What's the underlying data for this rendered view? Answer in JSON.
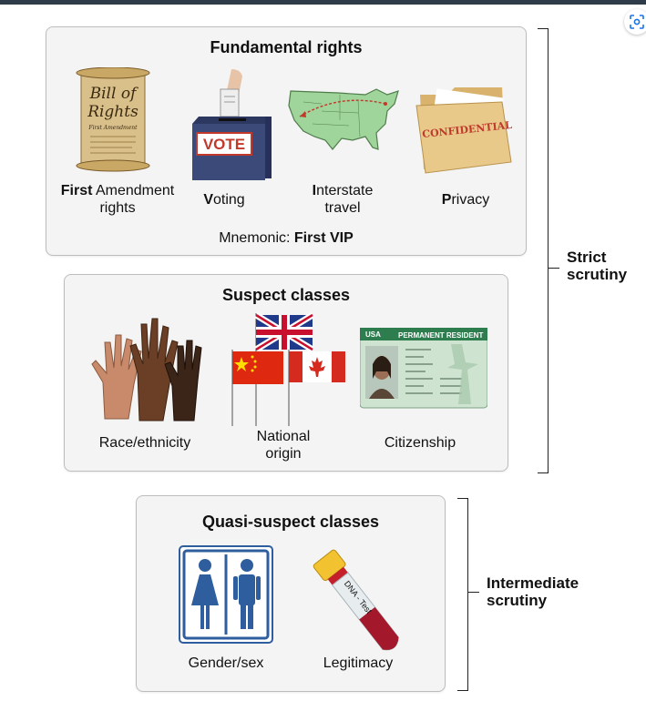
{
  "fundamental": {
    "title": "Fundamental rights",
    "items": [
      {
        "bold": "First",
        "rest": " Amendment",
        "line2": "rights"
      },
      {
        "bold": "V",
        "rest": "oting",
        "line2": ""
      },
      {
        "bold": "I",
        "rest": "nterstate",
        "line2": "travel"
      },
      {
        "bold": "P",
        "rest": "rivacy",
        "line2": ""
      }
    ],
    "mnemonic_prefix": "Mnemonic: ",
    "mnemonic_bold": "First VIP"
  },
  "suspect": {
    "title": "Suspect classes",
    "items": [
      {
        "line1": "Race/ethnicity",
        "line2": ""
      },
      {
        "line1": "National",
        "line2": "origin"
      },
      {
        "line1": "Citizenship",
        "line2": ""
      }
    ]
  },
  "quasi": {
    "title": "Quasi-suspect classes",
    "items": [
      {
        "line1": "Gender/sex"
      },
      {
        "line1": "Legitimacy"
      }
    ]
  },
  "brackets": {
    "strict": {
      "line1": "Strict",
      "line2": "scrutiny"
    },
    "intermediate": {
      "line1": "Intermediate",
      "line2": "scrutiny"
    }
  },
  "illustration_text": {
    "scroll_title_1": "Bill of",
    "scroll_title_2": "Rights",
    "scroll_sub": "First Amendment",
    "ballot_box": "VOTE",
    "folder_stamp": "CONFIDENTIAL",
    "card_country": "USA",
    "card_title": "PERMANENT RESIDENT",
    "tube_label": "DNA - Test"
  },
  "colors": {
    "vote_box": "#3c4a7a",
    "vote_red": "#c0392b",
    "map_green": "#9fd49a",
    "folder": "#e8c98a",
    "card_green": "#2e7d4f"
  }
}
